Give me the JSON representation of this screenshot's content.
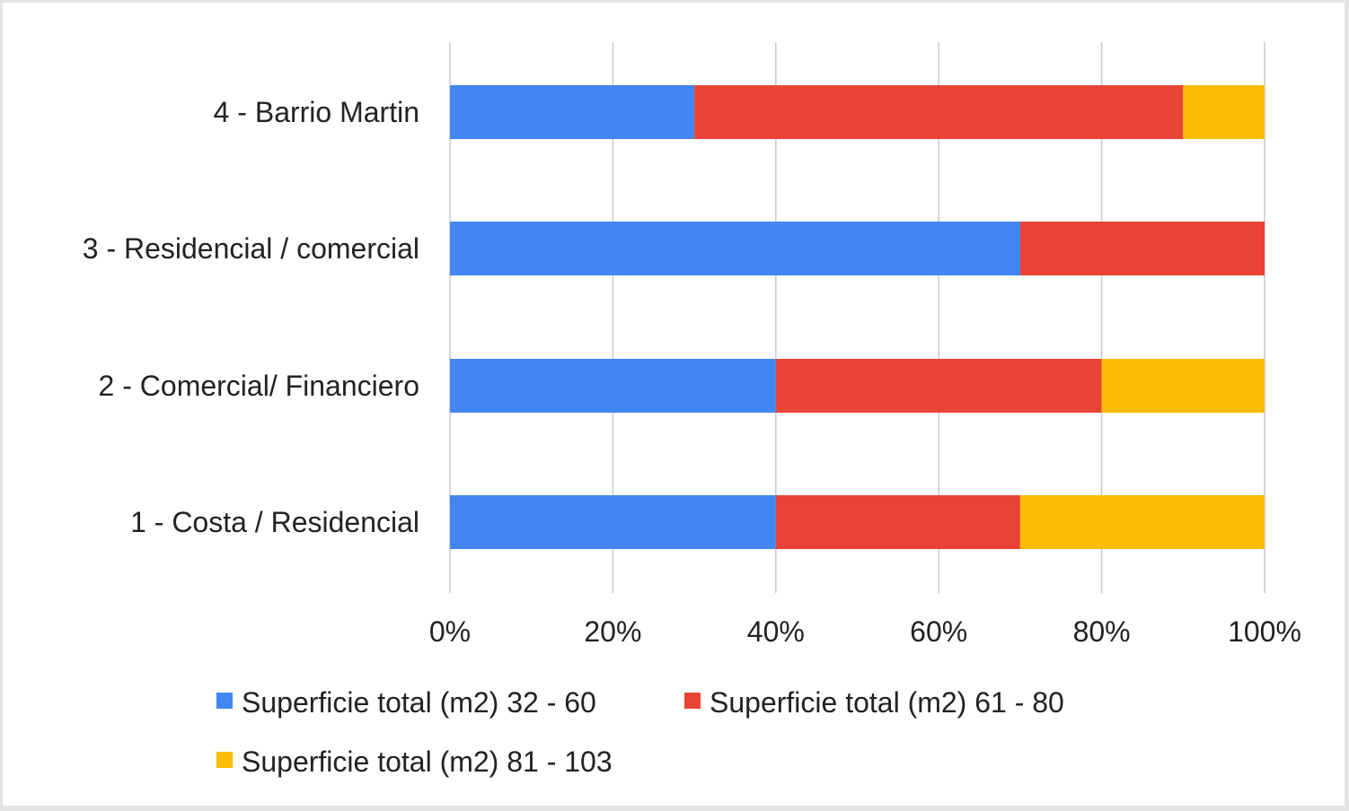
{
  "chart_data": {
    "type": "bar",
    "orientation": "horizontal",
    "stacked": "percent",
    "title": "",
    "xlabel": "",
    "ylabel": "",
    "xlim": [
      0,
      100
    ],
    "grid": true,
    "legend_position": "bottom",
    "categories": [
      "4 - Barrio Martin",
      "3 - Residencial / comercial",
      "2 - Comercial/ Financiero",
      "1 - Costa / Residencial"
    ],
    "x_ticks": [
      "0%",
      "20%",
      "40%",
      "60%",
      "80%",
      "100%"
    ],
    "x_tick_values": [
      0,
      20,
      40,
      60,
      80,
      100
    ],
    "series": [
      {
        "name": "Superficie total (m2) 32 - 60",
        "color": "#4286f4",
        "values": [
          30,
          70,
          40,
          40
        ]
      },
      {
        "name": "Superficie total (m2) 61 - 80",
        "color": "#ea4335",
        "values": [
          60,
          30,
          40,
          30
        ]
      },
      {
        "name": "Superficie total (m2) 81 - 103",
        "color": "#fbbc04",
        "values": [
          10,
          0,
          20,
          30
        ]
      }
    ]
  }
}
